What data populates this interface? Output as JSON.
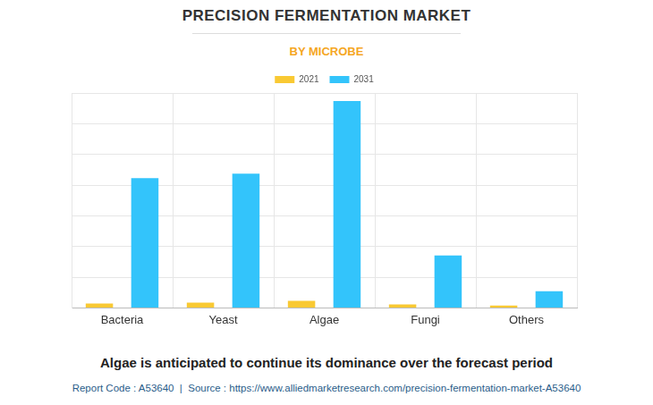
{
  "chart_data": {
    "type": "bar",
    "title": "PRECISION FERMENTATION MARKET",
    "subtitle": "BY MICROBE",
    "caption": "Algae is anticipated to continue its dominance over the forecast period",
    "source": "Report Code : A53640  |  Source : https://www.alliedmarketresearch.com/precision-fermentation-market-A53640",
    "categories": [
      "Bacteria",
      "Yeast",
      "Algae",
      "Fungi",
      "Others"
    ],
    "series": [
      {
        "name": "2021",
        "color": "#f9c933",
        "values": [
          0.14,
          0.17,
          0.23,
          0.11,
          0.08
        ]
      },
      {
        "name": "2031",
        "color": "#33c4fb",
        "values": [
          4.23,
          4.37,
          6.74,
          1.71,
          0.54
        ]
      }
    ],
    "ylim": [
      0,
      7
    ],
    "yticks": [
      0,
      1,
      2,
      3,
      4,
      5,
      6,
      7
    ],
    "grid": true,
    "legend": "top",
    "tick_labels": "x"
  }
}
